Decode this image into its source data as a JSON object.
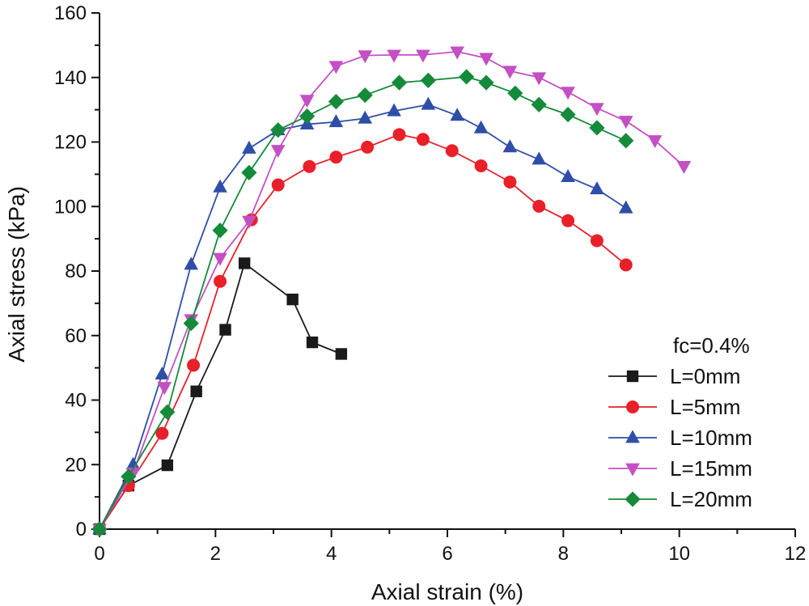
{
  "chart_data": {
    "type": "line",
    "xlabel": "Axial strain (%)",
    "ylabel": "Axial stress (kPa)",
    "xlim": [
      0,
      12
    ],
    "ylim": [
      0,
      160
    ],
    "xticks": [
      0,
      2,
      4,
      6,
      8,
      10,
      12
    ],
    "yticks": [
      0,
      20,
      40,
      60,
      80,
      100,
      120,
      140,
      160
    ],
    "grid": false,
    "legend_title": "fc=0.4%",
    "legend_position": "bottom-right",
    "series": [
      {
        "name": "L=0mm",
        "color": "#1a1a1a",
        "marker": "square",
        "x": [
          0,
          0.5,
          1.17,
          1.67,
          2.17,
          2.5,
          3.33,
          3.67,
          4.17
        ],
        "y": [
          0,
          13.5,
          19.8,
          42.7,
          61.8,
          82.4,
          71.2,
          57.9,
          54.3
        ]
      },
      {
        "name": "L=5mm",
        "color": "#e8202a",
        "marker": "circle",
        "x": [
          0,
          0.5,
          1.08,
          1.62,
          2.08,
          2.62,
          3.08,
          3.62,
          4.08,
          4.62,
          5.17,
          5.58,
          6.08,
          6.58,
          7.08,
          7.58,
          8.08,
          8.58,
          9.08
        ],
        "y": [
          0,
          13.5,
          29.7,
          50.8,
          76.8,
          95.9,
          106.7,
          112.4,
          115.3,
          118.4,
          122.3,
          120.8,
          117.3,
          112.6,
          107.6,
          100.1,
          95.6,
          89.4,
          81.9
        ]
      },
      {
        "name": "L=10mm",
        "color": "#2e4ea8",
        "marker": "triangle-up",
        "x": [
          0,
          0.58,
          1.08,
          1.58,
          2.08,
          2.58,
          3.08,
          3.58,
          4.08,
          4.58,
          5.08,
          5.67,
          6.17,
          6.58,
          7.08,
          7.58,
          8.08,
          8.58,
          9.08
        ],
        "y": [
          0,
          20.0,
          48.0,
          82.0,
          106.0,
          118.0,
          123.7,
          125.5,
          126.2,
          127.3,
          129.6,
          131.6,
          128.2,
          124.3,
          118.4,
          114.6,
          109.2,
          105.4,
          99.5
        ]
      },
      {
        "name": "L=15mm",
        "color": "#c44fc4",
        "marker": "triangle-down",
        "x": [
          0,
          0.58,
          1.12,
          1.58,
          2.08,
          2.58,
          3.08,
          3.58,
          4.08,
          4.58,
          5.08,
          5.58,
          6.17,
          6.67,
          7.08,
          7.58,
          8.08,
          8.58,
          9.08,
          9.58,
          10.08
        ],
        "y": [
          0,
          17.5,
          44.0,
          65.0,
          84.0,
          95.5,
          117.5,
          133.0,
          143.5,
          146.8,
          147.0,
          147.0,
          148.0,
          146.0,
          142.0,
          140.0,
          135.5,
          130.5,
          126.5,
          120.5,
          112.5
        ]
      },
      {
        "name": "L=20mm",
        "color": "#158a3a",
        "marker": "diamond",
        "x": [
          0,
          0.5,
          1.17,
          1.58,
          2.08,
          2.58,
          3.08,
          3.58,
          4.08,
          4.58,
          5.17,
          5.67,
          6.33,
          6.67,
          7.17,
          7.58,
          8.08,
          8.58,
          9.08
        ],
        "y": [
          0,
          16.3,
          36.3,
          63.8,
          92.6,
          110.5,
          123.7,
          128.0,
          132.5,
          134.5,
          138.4,
          139.1,
          140.2,
          138.4,
          135.1,
          131.6,
          128.5,
          124.4,
          120.4
        ]
      }
    ]
  }
}
